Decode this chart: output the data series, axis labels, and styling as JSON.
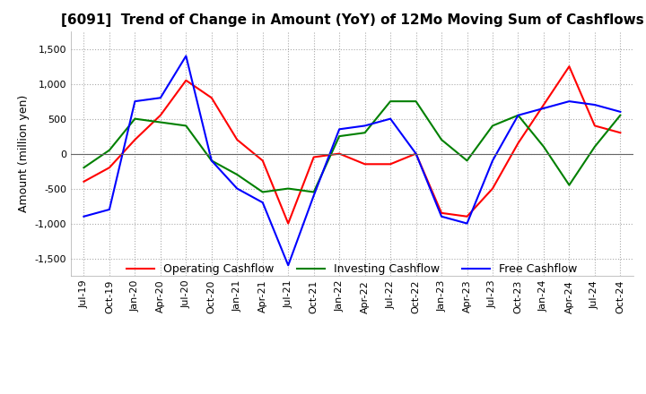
{
  "title": "[6091]  Trend of Change in Amount (YoY) of 12Mo Moving Sum of Cashflows",
  "ylabel": "Amount (million yen)",
  "ylim": [
    -1750,
    1750
  ],
  "yticks": [
    -1500,
    -1000,
    -500,
    0,
    500,
    1000,
    1500
  ],
  "x_labels": [
    "Jul-19",
    "Oct-19",
    "Jan-20",
    "Apr-20",
    "Jul-20",
    "Oct-20",
    "Jan-21",
    "Apr-21",
    "Jul-21",
    "Oct-21",
    "Jan-22",
    "Apr-22",
    "Jul-22",
    "Oct-22",
    "Jan-23",
    "Apr-23",
    "Jul-23",
    "Oct-23",
    "Jan-24",
    "Apr-24",
    "Jul-24",
    "Oct-24"
  ],
  "operating": [
    -400,
    -200,
    200,
    550,
    1050,
    800,
    200,
    -100,
    -1000,
    -50,
    0,
    -150,
    -150,
    0,
    -850,
    -900,
    -500,
    150,
    700,
    1250,
    400,
    300
  ],
  "investing": [
    -200,
    50,
    500,
    450,
    400,
    -100,
    -300,
    -550,
    -500,
    -550,
    250,
    300,
    750,
    750,
    200,
    -100,
    400,
    550,
    100,
    -450,
    100,
    550
  ],
  "free": [
    -900,
    -800,
    750,
    800,
    1400,
    -100,
    -500,
    -700,
    -1600,
    -600,
    350,
    400,
    500,
    0,
    -900,
    -1000,
    -100,
    550,
    650,
    750,
    700,
    600
  ],
  "colors": {
    "operating": "#ff0000",
    "investing": "#008000",
    "free": "#0000ff"
  },
  "legend_labels": [
    "Operating Cashflow",
    "Investing Cashflow",
    "Free Cashflow"
  ],
  "background_color": "#ffffff",
  "title_fontsize": 11,
  "label_fontsize": 9,
  "tick_fontsize": 8
}
